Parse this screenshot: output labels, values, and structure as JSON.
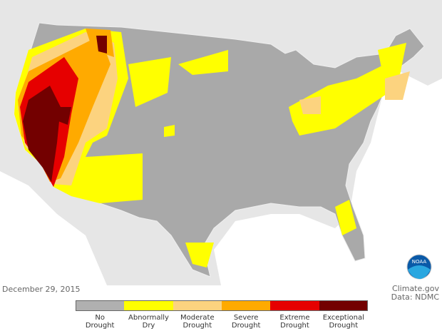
{
  "date": "December 29, 2015",
  "credit": {
    "line1": "Climate.gov",
    "line2": "Data: NDMC"
  },
  "logo": "NOAA",
  "legend": [
    {
      "line1": "No",
      "line2": "Drought",
      "color": "#b0b0b0"
    },
    {
      "line1": "Abnormally",
      "line2": "Dry",
      "color": "#ffff00"
    },
    {
      "line1": "Moderate",
      "line2": "Drought",
      "color": "#fcd37f"
    },
    {
      "line1": "Severe",
      "line2": "Drought",
      "color": "#ffaa00"
    },
    {
      "line1": "Extreme",
      "line2": "Drought",
      "color": "#e60000"
    },
    {
      "line1": "Exceptional",
      "line2": "Drought",
      "color": "#730000"
    }
  ]
}
